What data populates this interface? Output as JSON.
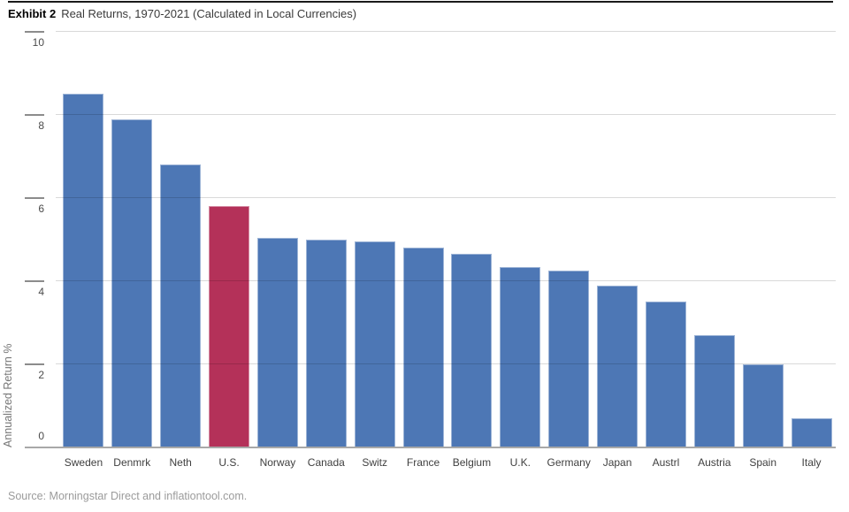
{
  "header": {
    "exhibit_label": "Exhibit 2",
    "title": "Real Returns, 1970-2021 (Calculated in Local Currencies)"
  },
  "source": "Source: Morningstar Direct and inflationtool.com.",
  "chart_data": {
    "type": "bar",
    "title": "Exhibit 2 Real Returns, 1970-2021 (Calculated in Local Currencies)",
    "xlabel": "",
    "ylabel": "Annualized Return %",
    "ylim": [
      0,
      10
    ],
    "yticks": [
      0,
      2,
      4,
      6,
      8,
      10
    ],
    "grid": true,
    "legend": false,
    "categories": [
      "Sweden",
      "Denmrk",
      "Neth",
      "U.S.",
      "Norway",
      "Canada",
      "Switz",
      "France",
      "Belgium",
      "U.K.",
      "Germany",
      "Japan",
      "Austrl",
      "Austria",
      "Spain",
      "Italy"
    ],
    "values": [
      8.5,
      7.9,
      6.8,
      5.8,
      5.05,
      5.0,
      4.95,
      4.8,
      4.65,
      4.35,
      4.25,
      3.9,
      3.5,
      2.7,
      2.0,
      0.7
    ],
    "highlight_category": "U.S.",
    "bar_color": "#4d77b5",
    "highlight_color": "#b43159"
  }
}
